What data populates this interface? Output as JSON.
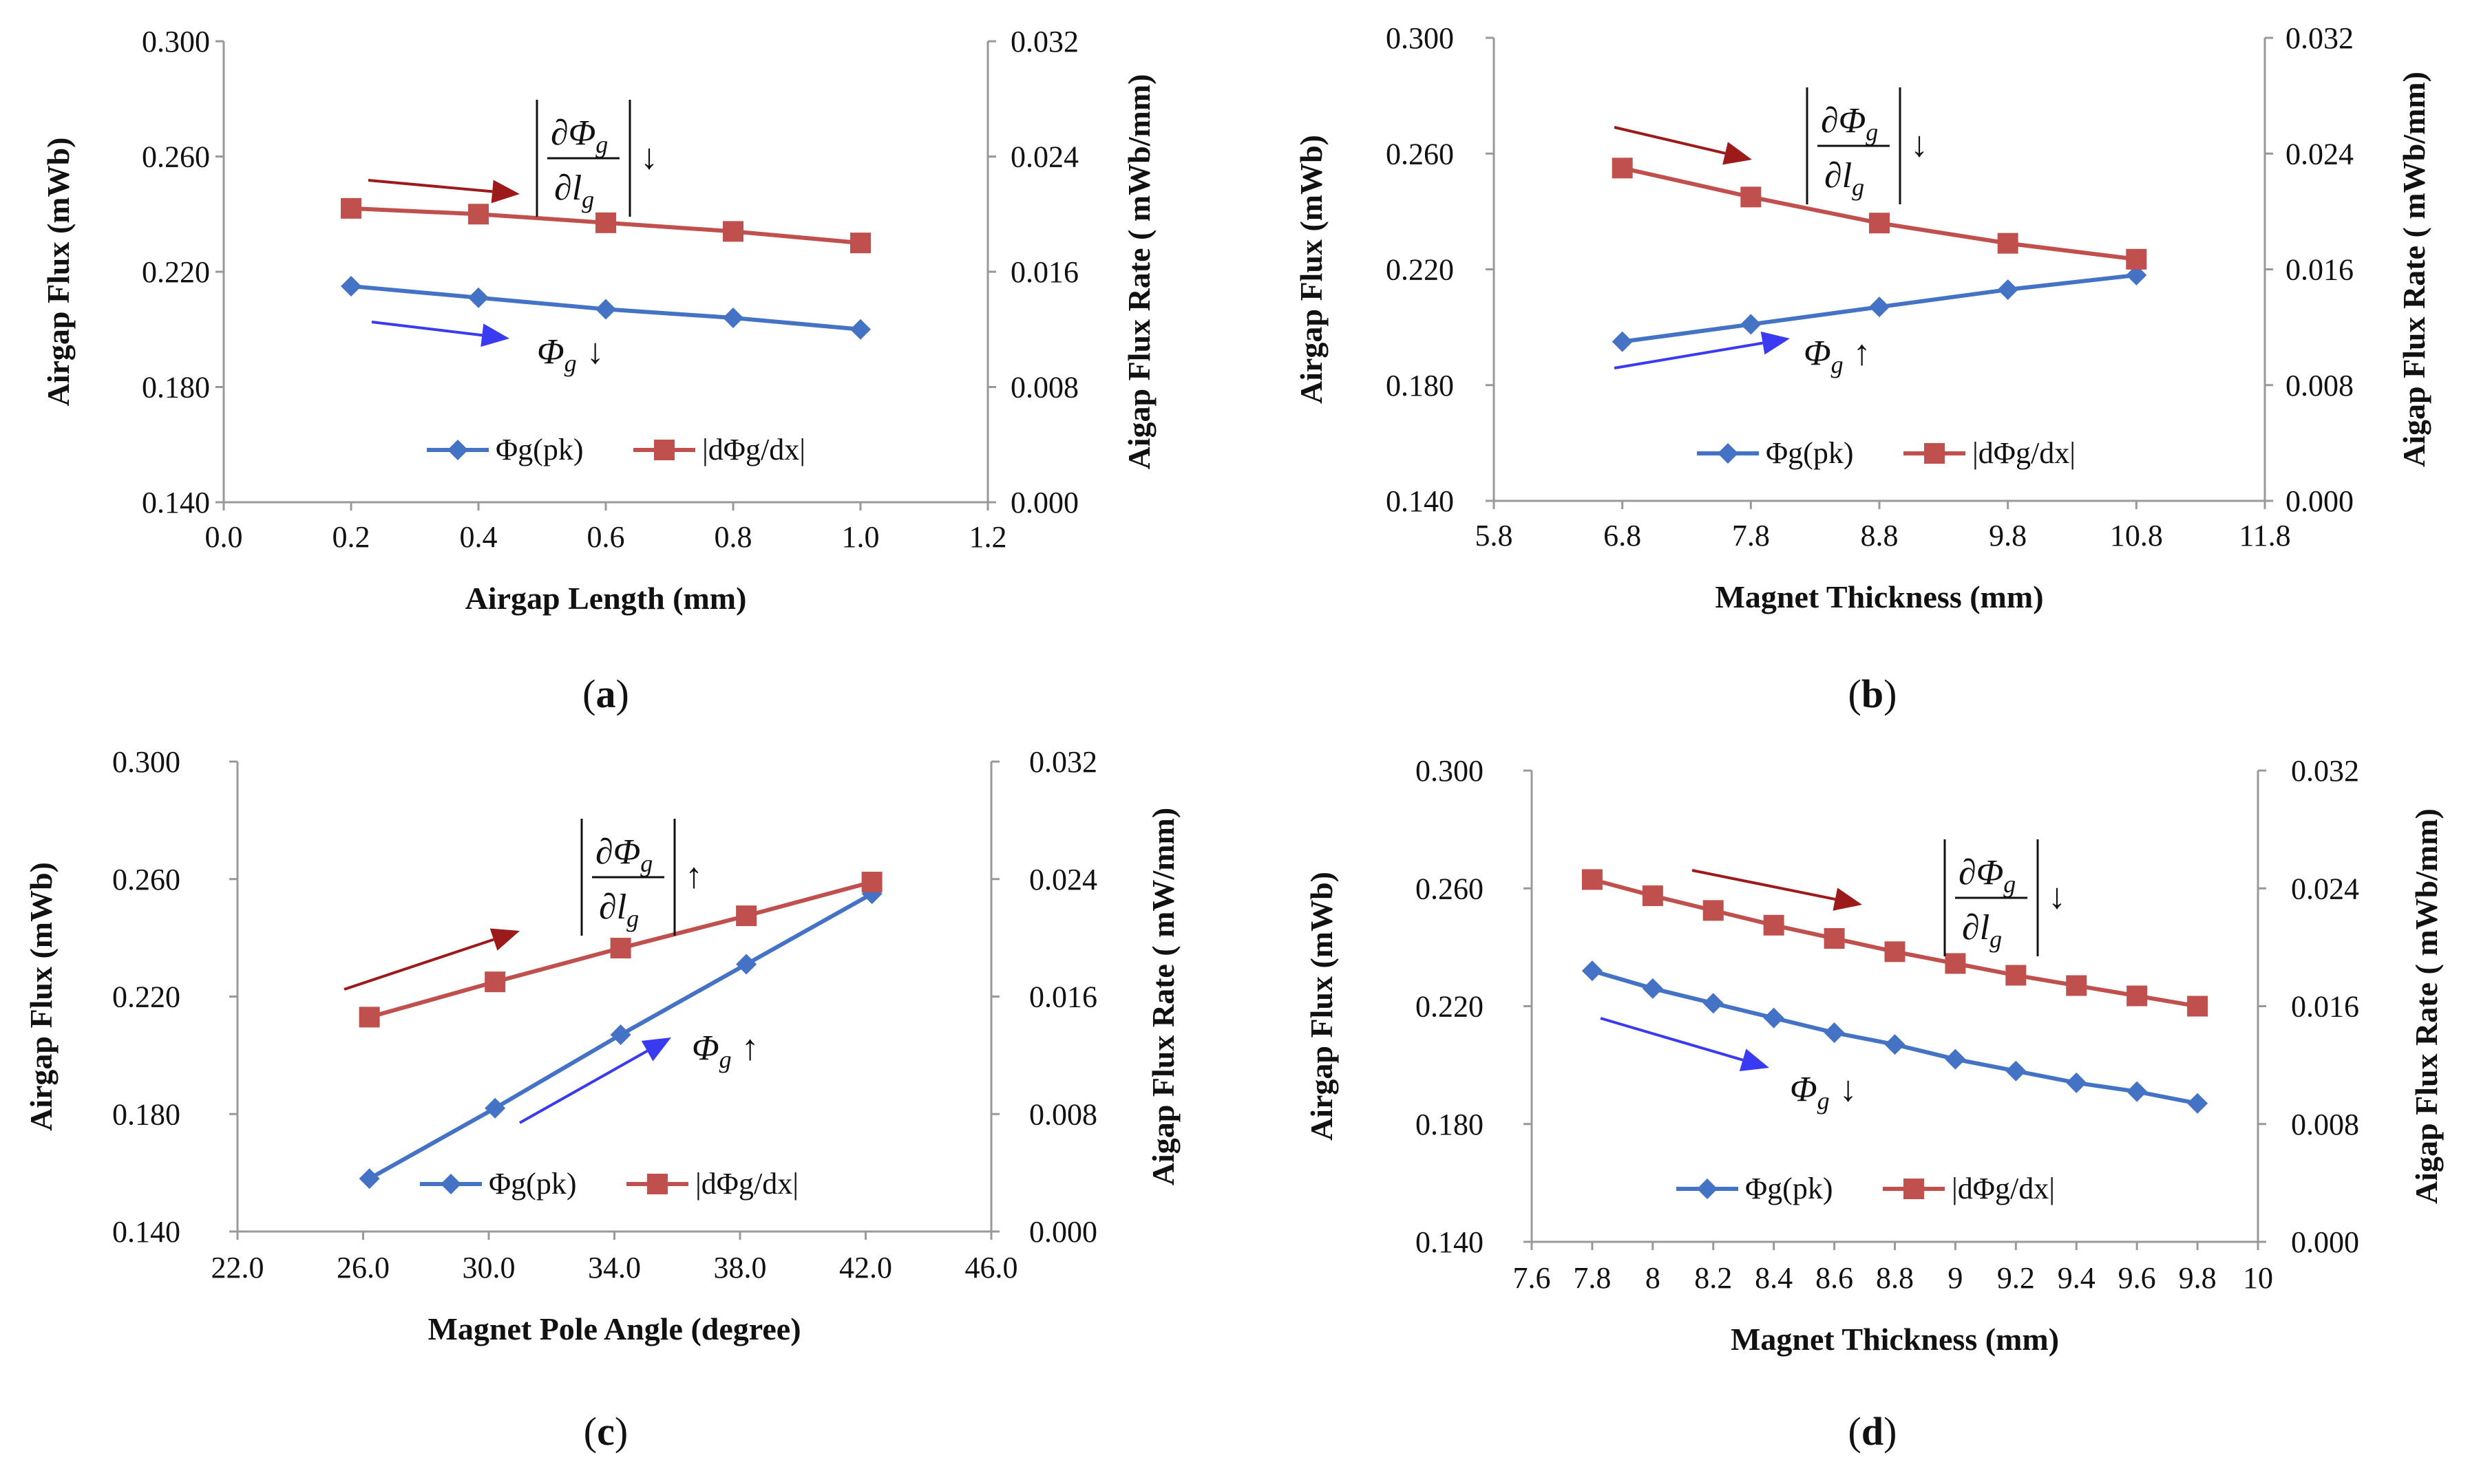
{
  "figure": {
    "captions": [
      {
        "open": "(",
        "letter": "a",
        "close": ")"
      },
      {
        "open": "(",
        "letter": "b",
        "close": ")"
      },
      {
        "open": "(",
        "letter": "c",
        "close": ")"
      },
      {
        "open": "(",
        "letter": "d",
        "close": ")"
      }
    ]
  },
  "colors": {
    "blue_series": "#4472C4",
    "red_series": "#C0504D",
    "red_arrow": "#9C1A1A",
    "blue_arrow": "#3A3AF2",
    "axis": "#999999"
  },
  "chart_data": [
    {
      "type": "line",
      "title": "",
      "xlabel": "Airgap Length (mm)",
      "ylabel": "Airgap Flux  (mWb)",
      "y2label": "Aigap Flux Rate ( mWb/mm)",
      "xlim": [
        0.0,
        1.2
      ],
      "ylim": [
        0.14,
        0.3
      ],
      "y2lim": [
        0.0,
        0.032
      ],
      "xticks": [
        "0.0",
        "0.2",
        "0.4",
        "0.6",
        "0.8",
        "1.0",
        "1.2"
      ],
      "yticks": [
        "0.140",
        "0.180",
        "0.220",
        "0.260",
        "0.300"
      ],
      "y2ticks": [
        "0.000",
        "0.008",
        "0.016",
        "0.024",
        "0.032"
      ],
      "series": [
        {
          "name": "Φg(pk)",
          "axis": "left",
          "marker": "diamond",
          "x": [
            0.2,
            0.4,
            0.6,
            0.8,
            1.0
          ],
          "values": [
            0.215,
            0.211,
            0.207,
            0.204,
            0.2
          ]
        },
        {
          "name": "|dΦg/dx|",
          "axis": "right",
          "marker": "square",
          "x": [
            0.2,
            0.4,
            0.6,
            0.8,
            1.0
          ],
          "values": [
            0.0204,
            0.02,
            0.0194,
            0.0188,
            0.018
          ]
        }
      ],
      "annotations": {
        "derivative": {
          "num": "∂Φ",
          "num_sub": "g",
          "den": "∂l",
          "den_sub": "g",
          "arrow": "↓"
        },
        "flux": {
          "sym": "Φ",
          "sub": "g",
          "arrow": "↓"
        }
      }
    },
    {
      "type": "line",
      "title": "",
      "xlabel": "Magnet Thickness (mm)",
      "ylabel": "Airgap Flux  (mWb)",
      "y2label": "Aigap Flux Rate ( mWb/mm)",
      "xlim": [
        5.8,
        11.8
      ],
      "ylim": [
        0.14,
        0.3
      ],
      "y2lim": [
        0.0,
        0.032
      ],
      "xticks": [
        "5.8",
        "6.8",
        "7.8",
        "8.8",
        "9.8",
        "10.8",
        "11.8"
      ],
      "yticks": [
        "0.140",
        "0.180",
        "0.220",
        "0.260",
        "0.300"
      ],
      "y2ticks": [
        "0.000",
        "0.008",
        "0.016",
        "0.024",
        "0.032"
      ],
      "series": [
        {
          "name": "Φg(pk)",
          "axis": "left",
          "marker": "diamond",
          "x": [
            6.8,
            7.8,
            8.8,
            9.8,
            10.8
          ],
          "values": [
            0.195,
            0.201,
            0.207,
            0.213,
            0.218
          ]
        },
        {
          "name": "|dΦg/dx|",
          "axis": "right",
          "marker": "square",
          "x": [
            6.8,
            7.8,
            8.8,
            9.8,
            10.8
          ],
          "values": [
            0.023,
            0.021,
            0.0192,
            0.0178,
            0.0167
          ]
        }
      ],
      "annotations": {
        "derivative": {
          "num": "∂Φ",
          "num_sub": "g",
          "den": "∂l",
          "den_sub": "g",
          "arrow": "↓"
        },
        "flux": {
          "sym": "Φ",
          "sub": "g",
          "arrow": "↑"
        }
      }
    },
    {
      "type": "line",
      "title": "",
      "xlabel": "Magnet Pole Angle (degree)",
      "ylabel": "Airgap Flux  (mWb)",
      "y2label": "Aigap Flux Rate ( mW/mm)",
      "xlim": [
        22.0,
        46.0
      ],
      "ylim": [
        0.14,
        0.3
      ],
      "y2lim": [
        0.0,
        0.032
      ],
      "xticks": [
        "22.0",
        "26.0",
        "30.0",
        "34.0",
        "38.0",
        "42.0",
        "46.0"
      ],
      "yticks": [
        "0.140",
        "0.180",
        "0.220",
        "0.260",
        "0.300"
      ],
      "y2ticks": [
        "0.000",
        "0.008",
        "0.016",
        "0.024",
        "0.032"
      ],
      "series": [
        {
          "name": "Φg(pk)",
          "axis": "left",
          "marker": "diamond",
          "x": [
            26.2,
            30.2,
            34.2,
            38.2,
            42.2
          ],
          "values": [
            0.158,
            0.182,
            0.207,
            0.231,
            0.255
          ]
        },
        {
          "name": "|dΦg/dx|",
          "axis": "right",
          "marker": "square",
          "x": [
            26.2,
            30.2,
            34.2,
            38.2,
            42.2
          ],
          "values": [
            0.0146,
            0.017,
            0.0193,
            0.0215,
            0.0238
          ]
        }
      ],
      "annotations": {
        "derivative": {
          "num": "∂Φ",
          "num_sub": "g",
          "den": "∂l",
          "den_sub": "g",
          "arrow": "↑"
        },
        "flux": {
          "sym": "Φ",
          "sub": "g",
          "arrow": "↑"
        }
      }
    },
    {
      "type": "line",
      "title": "",
      "xlabel": "Magnet Thickness (mm)",
      "ylabel": "Airgap Flux  (mWb)",
      "y2label": "Aigap Flux Rate ( mWb/mm)",
      "xlim": [
        7.6,
        10.0
      ],
      "ylim": [
        0.14,
        0.3
      ],
      "y2lim": [
        0.0,
        0.032
      ],
      "xticks": [
        "7.6",
        "7.8",
        "8",
        "8.2",
        "8.4",
        "8.6",
        "8.8",
        "9",
        "9.2",
        "9.4",
        "9.6",
        "9.8",
        "10"
      ],
      "yticks": [
        "0.140",
        "0.180",
        "0.220",
        "0.260",
        "0.300"
      ],
      "y2ticks": [
        "0.000",
        "0.008",
        "0.016",
        "0.024",
        "0.032"
      ],
      "series": [
        {
          "name": "Φg(pk)",
          "axis": "left",
          "marker": "diamond",
          "x": [
            7.8,
            8.0,
            8.2,
            8.4,
            8.6,
            8.8,
            9.0,
            9.2,
            9.4,
            9.6,
            9.8
          ],
          "values": [
            0.232,
            0.226,
            0.221,
            0.216,
            0.211,
            0.207,
            0.202,
            0.198,
            0.194,
            0.191,
            0.187
          ]
        },
        {
          "name": "|dΦg/dx|",
          "axis": "right",
          "marker": "square",
          "x": [
            7.8,
            8.0,
            8.2,
            8.4,
            8.6,
            8.8,
            9.0,
            9.2,
            9.4,
            9.6,
            9.8
          ],
          "values": [
            0.0246,
            0.0235,
            0.0225,
            0.0215,
            0.0206,
            0.0197,
            0.0189,
            0.0181,
            0.0174,
            0.0167,
            0.016
          ]
        }
      ],
      "annotations": {
        "derivative": {
          "num": "∂Φ",
          "num_sub": "g",
          "den": "∂l",
          "den_sub": "g",
          "arrow": "↓"
        },
        "flux": {
          "sym": "Φ",
          "sub": "g",
          "arrow": "↓"
        }
      }
    }
  ]
}
